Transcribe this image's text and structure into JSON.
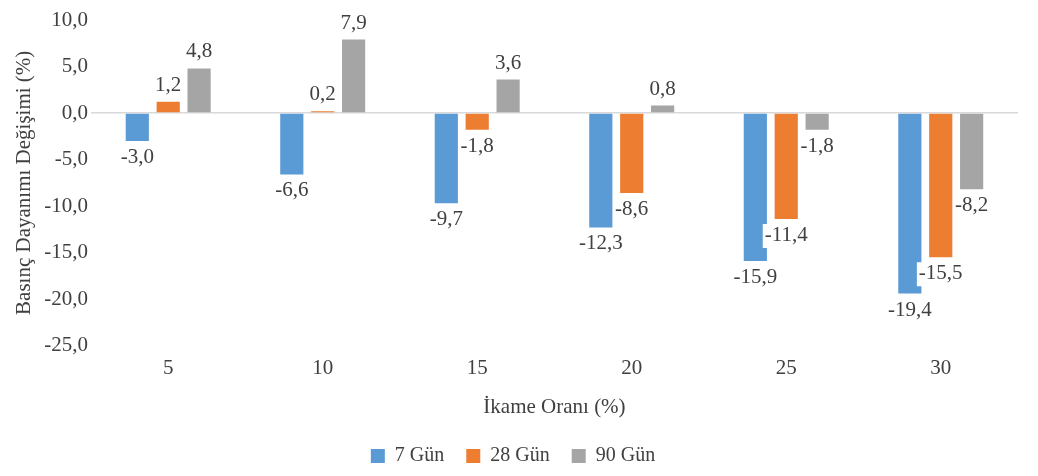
{
  "chart_data": {
    "type": "bar",
    "xlabel": "İkame Oranı (%)",
    "ylabel": "Basınç Dayanımı Değişimi (%)",
    "categories": [
      "5",
      "10",
      "15",
      "20",
      "25",
      "30"
    ],
    "series": [
      {
        "name": "7 Gün",
        "color": "#5b9bd5",
        "values": [
          -3.0,
          -6.6,
          -9.7,
          -12.3,
          -15.9,
          -19.4
        ],
        "value_labels": [
          "-3,0",
          "-6,6",
          "-9,7",
          "-12,3",
          "-15,9",
          "-19,4"
        ]
      },
      {
        "name": "28 Gün",
        "color": "#ed7d31",
        "values": [
          1.2,
          0.2,
          -1.8,
          -8.6,
          -11.4,
          -15.5
        ],
        "value_labels": [
          "1,2",
          "0,2",
          "-1,8",
          "-8,6",
          "-11,4",
          "-15,5"
        ]
      },
      {
        "name": "90 Gün",
        "color": "#a5a5a5",
        "values": [
          4.8,
          7.9,
          3.6,
          0.8,
          -1.8,
          -8.2
        ],
        "value_labels": [
          "4,8",
          "7,9",
          "3,6",
          "0,8",
          "-1,8",
          "-8,2"
        ]
      }
    ],
    "ylim": [
      -25,
      10
    ],
    "yticks": [
      {
        "value": 10,
        "label": "10,0"
      },
      {
        "value": 5,
        "label": "5,0"
      },
      {
        "value": 0,
        "label": "0,0"
      },
      {
        "value": -5,
        "label": "-5,0"
      },
      {
        "value": -10,
        "label": "-10,0"
      },
      {
        "value": -15,
        "label": "-15,0"
      },
      {
        "value": -20,
        "label": "-20,0"
      },
      {
        "value": -25,
        "label": "-25,0"
      }
    ],
    "legend": "bottom"
  }
}
